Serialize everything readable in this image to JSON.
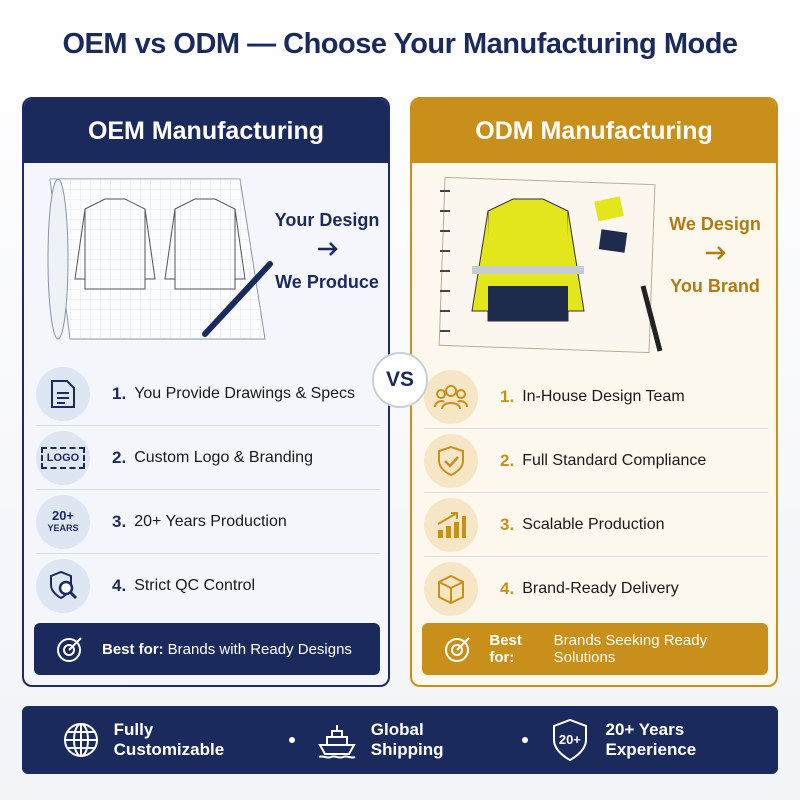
{
  "header": {
    "title": "OEM vs ODM — Choose Your Manufacturing Mode"
  },
  "oem": {
    "title": "OEM Manufacturing",
    "tagline_top": "Your Design",
    "tagline_bottom": "We Produce",
    "items": [
      {
        "number": "1.",
        "text": "You Provide Drawings & Specs"
      },
      {
        "number": "2.",
        "text": "Custom Logo & Branding",
        "icon_label": "LOGO"
      },
      {
        "number": "3.",
        "text": "20+ Years Production",
        "icon_label": "20+",
        "icon_sublabel": "YEARS"
      },
      {
        "number": "4.",
        "text": "Strict QC Control"
      }
    ],
    "best_for_label": "Best for:",
    "best_for": "Brands with Ready Designs"
  },
  "vs": "VS",
  "odm": {
    "title": "ODM Manufacturing",
    "tagline_top": "We Design",
    "tagline_bottom": "You Brand",
    "items": [
      {
        "number": "1.",
        "text": "In-House Design Team"
      },
      {
        "number": "2.",
        "text": "Full Standard Compliance"
      },
      {
        "number": "3.",
        "text": "Scalable Production"
      },
      {
        "number": "4.",
        "text": "Brand-Ready Delivery"
      }
    ],
    "best_for_label": "Best for:",
    "best_for": "Brands Seeking Ready Solutions"
  },
  "footer": {
    "items": [
      "Fully Customizable",
      "Global Shipping",
      "20+ Years Experience"
    ],
    "badge": "20+"
  }
}
